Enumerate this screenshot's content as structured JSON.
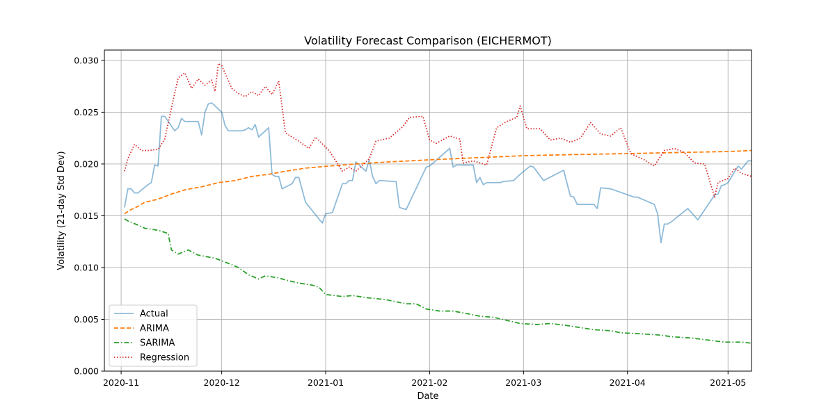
{
  "chart_data": {
    "type": "line",
    "title": "Volatility Forecast Comparison (EICHERMOT)",
    "xlabel": "Date",
    "ylabel": "Volatility (21-day Std Dev)",
    "xlim": [
      "2020-10-27",
      "2021-05-08"
    ],
    "ylim": [
      0,
      0.031
    ],
    "x_ticks": [
      {
        "date": "2020-11-01",
        "label": "2020-11"
      },
      {
        "date": "2020-12-01",
        "label": "2020-12"
      },
      {
        "date": "2021-01-01",
        "label": "2021-01"
      },
      {
        "date": "2021-02-01",
        "label": "2021-02"
      },
      {
        "date": "2021-03-01",
        "label": "2021-03"
      },
      {
        "date": "2021-04-01",
        "label": "2021-04"
      },
      {
        "date": "2021-05-01",
        "label": "2021-05"
      }
    ],
    "y_ticks": [
      {
        "value": 0,
        "label": "0.000"
      },
      {
        "value": 0.005,
        "label": "0.005"
      },
      {
        "value": 0.01,
        "label": "0.010"
      },
      {
        "value": 0.015,
        "label": "0.015"
      },
      {
        "value": 0.02,
        "label": "0.020"
      },
      {
        "value": 0.025,
        "label": "0.025"
      },
      {
        "value": 0.03,
        "label": "0.030"
      }
    ],
    "grid": true,
    "legend_position": "lower-left",
    "series": [
      {
        "name": "Actual",
        "color": "#1f77b4",
        "dash": "solid",
        "opacity": 0.5,
        "points": [
          [
            "2020-11-02",
            0.0158
          ],
          [
            "2020-11-03",
            0.0176
          ],
          [
            "2020-11-04",
            0.0176
          ],
          [
            "2020-11-05",
            0.0172
          ],
          [
            "2020-11-06",
            0.0172
          ],
          [
            "2020-11-09",
            0.018
          ],
          [
            "2020-11-10",
            0.0182
          ],
          [
            "2020-11-11",
            0.0199
          ],
          [
            "2020-11-12",
            0.0198
          ],
          [
            "2020-11-13",
            0.0246
          ],
          [
            "2020-11-14",
            0.0246
          ],
          [
            "2020-11-17",
            0.0232
          ],
          [
            "2020-11-18",
            0.0235
          ],
          [
            "2020-11-19",
            0.0244
          ],
          [
            "2020-11-20",
            0.0241
          ],
          [
            "2020-11-23",
            0.0241
          ],
          [
            "2020-11-24",
            0.0241
          ],
          [
            "2020-11-25",
            0.0228
          ],
          [
            "2020-11-26",
            0.025
          ],
          [
            "2020-11-27",
            0.0258
          ],
          [
            "2020-11-28",
            0.0259
          ],
          [
            "2020-12-01",
            0.025
          ],
          [
            "2020-12-02",
            0.0237
          ],
          [
            "2020-12-03",
            0.0232
          ],
          [
            "2020-12-07",
            0.0232
          ],
          [
            "2020-12-08",
            0.0233
          ],
          [
            "2020-12-09",
            0.0235
          ],
          [
            "2020-12-10",
            0.0233
          ],
          [
            "2020-12-11",
            0.0238
          ],
          [
            "2020-12-12",
            0.0226
          ],
          [
            "2020-12-15",
            0.0235
          ],
          [
            "2020-12-16",
            0.019
          ],
          [
            "2020-12-17",
            0.0188
          ],
          [
            "2020-12-18",
            0.0188
          ],
          [
            "2020-12-19",
            0.0176
          ],
          [
            "2020-12-22",
            0.0181
          ],
          [
            "2020-12-23",
            0.0187
          ],
          [
            "2020-12-24",
            0.0187
          ],
          [
            "2020-12-26",
            0.0163
          ],
          [
            "2020-12-31",
            0.0143
          ],
          [
            "2021-01-01",
            0.0152
          ],
          [
            "2021-01-03",
            0.0153
          ],
          [
            "2021-01-06",
            0.0181
          ],
          [
            "2021-01-07",
            0.0181
          ],
          [
            "2021-01-08",
            0.0184
          ],
          [
            "2021-01-09",
            0.0184
          ],
          [
            "2021-01-10",
            0.0202
          ],
          [
            "2021-01-13",
            0.0193
          ],
          [
            "2021-01-14",
            0.0204
          ],
          [
            "2021-01-15",
            0.0188
          ],
          [
            "2021-01-16",
            0.0181
          ],
          [
            "2021-01-17",
            0.0184
          ],
          [
            "2021-01-22",
            0.0183
          ],
          [
            "2021-01-23",
            0.0158
          ],
          [
            "2021-01-25",
            0.0156
          ],
          [
            "2021-01-31",
            0.0197
          ],
          [
            "2021-02-01",
            0.0198
          ],
          [
            "2021-02-07",
            0.0215
          ],
          [
            "2021-02-08",
            0.0197
          ],
          [
            "2021-02-09",
            0.0199
          ],
          [
            "2021-02-14",
            0.0199
          ],
          [
            "2021-02-15",
            0.0182
          ],
          [
            "2021-02-16",
            0.0187
          ],
          [
            "2021-02-17",
            0.018
          ],
          [
            "2021-02-18",
            0.0182
          ],
          [
            "2021-02-22",
            0.0182
          ],
          [
            "2021-02-23",
            0.0183
          ],
          [
            "2021-02-26",
            0.0184
          ],
          [
            "2021-02-28",
            0.019
          ],
          [
            "2021-03-03",
            0.0198
          ],
          [
            "2021-03-04",
            0.0197
          ],
          [
            "2021-03-07",
            0.0184
          ],
          [
            "2021-03-13",
            0.0194
          ],
          [
            "2021-03-14",
            0.0181
          ],
          [
            "2021-03-15",
            0.0169
          ],
          [
            "2021-03-16",
            0.0168
          ],
          [
            "2021-03-17",
            0.0161
          ],
          [
            "2021-03-22",
            0.0161
          ],
          [
            "2021-03-23",
            0.0157
          ],
          [
            "2021-03-24",
            0.0177
          ],
          [
            "2021-03-27",
            0.0176
          ],
          [
            "2021-04-03",
            0.0168
          ],
          [
            "2021-04-04",
            0.0168
          ],
          [
            "2021-04-09",
            0.0161
          ],
          [
            "2021-04-10",
            0.0152
          ],
          [
            "2021-04-11",
            0.0124
          ],
          [
            "2021-04-12",
            0.0142
          ],
          [
            "2021-04-13",
            0.0142
          ],
          [
            "2021-04-14",
            0.0144
          ],
          [
            "2021-04-19",
            0.0157
          ],
          [
            "2021-04-22",
            0.0146
          ],
          [
            "2021-04-27",
            0.017
          ],
          [
            "2021-04-28",
            0.0171
          ],
          [
            "2021-04-29",
            0.0179
          ],
          [
            "2021-04-30",
            0.018
          ],
          [
            "2021-05-01",
            0.0182
          ],
          [
            "2021-05-04",
            0.0198
          ],
          [
            "2021-05-05",
            0.0195
          ],
          [
            "2021-05-07",
            0.0203
          ],
          [
            "2021-05-08",
            0.0203
          ]
        ]
      },
      {
        "name": "ARIMA",
        "color": "#ff7f0e",
        "dash": "dashed",
        "opacity": 1,
        "points": [
          [
            "2020-11-02",
            0.0152
          ],
          [
            "2020-11-04",
            0.0156
          ],
          [
            "2020-11-06",
            0.0159
          ],
          [
            "2020-11-08",
            0.0163
          ],
          [
            "2020-11-12",
            0.0166
          ],
          [
            "2020-11-16",
            0.0171
          ],
          [
            "2020-11-20",
            0.0175
          ],
          [
            "2020-11-25",
            0.0178
          ],
          [
            "2020-11-30",
            0.0182
          ],
          [
            "2020-12-05",
            0.0184
          ],
          [
            "2020-12-10",
            0.0188
          ],
          [
            "2020-12-15",
            0.019
          ],
          [
            "2020-12-20",
            0.0193
          ],
          [
            "2020-12-26",
            0.0196
          ],
          [
            "2021-01-02",
            0.0198
          ],
          [
            "2021-01-10",
            0.02
          ],
          [
            "2021-01-20",
            0.0202
          ],
          [
            "2021-02-01",
            0.0204
          ],
          [
            "2021-02-15",
            0.0206
          ],
          [
            "2021-03-01",
            0.0208
          ],
          [
            "2021-03-15",
            0.0209
          ],
          [
            "2021-04-01",
            0.021
          ],
          [
            "2021-04-15",
            0.0211
          ],
          [
            "2021-05-01",
            0.0212
          ],
          [
            "2021-05-08",
            0.0213
          ]
        ]
      },
      {
        "name": "SARIMA",
        "color": "#2ca02c",
        "dash": "dashdot",
        "opacity": 1,
        "points": [
          [
            "2020-11-02",
            0.0147
          ],
          [
            "2020-11-03",
            0.0145
          ],
          [
            "2020-11-06",
            0.0141
          ],
          [
            "2020-11-08",
            0.0138
          ],
          [
            "2020-11-12",
            0.0136
          ],
          [
            "2020-11-15",
            0.0133
          ],
          [
            "2020-11-16",
            0.0117
          ],
          [
            "2020-11-18",
            0.0113
          ],
          [
            "2020-11-21",
            0.0117
          ],
          [
            "2020-11-24",
            0.0112
          ],
          [
            "2020-11-29",
            0.0109
          ],
          [
            "2020-12-03",
            0.0104
          ],
          [
            "2020-12-06",
            0.01
          ],
          [
            "2020-12-09",
            0.0093
          ],
          [
            "2020-12-12",
            0.0089
          ],
          [
            "2020-12-14",
            0.0092
          ],
          [
            "2020-12-18",
            0.009
          ],
          [
            "2020-12-20",
            0.0088
          ],
          [
            "2020-12-24",
            0.0085
          ],
          [
            "2020-12-28",
            0.0083
          ],
          [
            "2020-12-30",
            0.0081
          ],
          [
            "2021-01-01",
            0.0074
          ],
          [
            "2021-01-06",
            0.0072
          ],
          [
            "2021-01-09",
            0.0073
          ],
          [
            "2021-01-13",
            0.0071
          ],
          [
            "2021-01-19",
            0.0069
          ],
          [
            "2021-01-22",
            0.0067
          ],
          [
            "2021-01-25",
            0.0065
          ],
          [
            "2021-01-28",
            0.0065
          ],
          [
            "2021-01-31",
            0.006
          ],
          [
            "2021-02-04",
            0.0058
          ],
          [
            "2021-02-08",
            0.0058
          ],
          [
            "2021-02-13",
            0.0055
          ],
          [
            "2021-02-16",
            0.0053
          ],
          [
            "2021-02-20",
            0.0052
          ],
          [
            "2021-02-24",
            0.0049
          ],
          [
            "2021-02-28",
            0.0046
          ],
          [
            "2021-03-05",
            0.0045
          ],
          [
            "2021-03-09",
            0.0046
          ],
          [
            "2021-03-14",
            0.0044
          ],
          [
            "2021-03-18",
            0.0042
          ],
          [
            "2021-03-22",
            0.004
          ],
          [
            "2021-03-27",
            0.0039
          ],
          [
            "2021-03-30",
            0.0037
          ],
          [
            "2021-04-05",
            0.0036
          ],
          [
            "2021-04-10",
            0.0035
          ],
          [
            "2021-04-15",
            0.0033
          ],
          [
            "2021-04-20",
            0.0032
          ],
          [
            "2021-04-25",
            0.003
          ],
          [
            "2021-04-30",
            0.0028
          ],
          [
            "2021-05-05",
            0.0028
          ],
          [
            "2021-05-08",
            0.0027
          ]
        ]
      },
      {
        "name": "Regression",
        "color": "#d62728",
        "dash": "dotted",
        "opacity": 1,
        "points": [
          [
            "2020-11-02",
            0.0193
          ],
          [
            "2020-11-03",
            0.0205
          ],
          [
            "2020-11-05",
            0.0219
          ],
          [
            "2020-11-07",
            0.0213
          ],
          [
            "2020-11-09",
            0.0213
          ],
          [
            "2020-11-12",
            0.0214
          ],
          [
            "2020-11-14",
            0.0224
          ],
          [
            "2020-11-16",
            0.0254
          ],
          [
            "2020-11-18",
            0.0283
          ],
          [
            "2020-11-20",
            0.0288
          ],
          [
            "2020-11-22",
            0.0273
          ],
          [
            "2020-11-24",
            0.0282
          ],
          [
            "2020-11-26",
            0.0276
          ],
          [
            "2020-11-28",
            0.0281
          ],
          [
            "2020-11-29",
            0.027
          ],
          [
            "2020-11-30",
            0.0297
          ],
          [
            "2020-12-01",
            0.0295
          ],
          [
            "2020-12-04",
            0.0273
          ],
          [
            "2020-12-06",
            0.0268
          ],
          [
            "2020-12-08",
            0.0265
          ],
          [
            "2020-12-10",
            0.027
          ],
          [
            "2020-12-12",
            0.0266
          ],
          [
            "2020-12-14",
            0.0275
          ],
          [
            "2020-12-16",
            0.0267
          ],
          [
            "2020-12-18",
            0.028
          ],
          [
            "2020-12-20",
            0.023
          ],
          [
            "2020-12-24",
            0.0222
          ],
          [
            "2020-12-27",
            0.0215
          ],
          [
            "2020-12-29",
            0.0226
          ],
          [
            "2021-01-02",
            0.0213
          ],
          [
            "2021-01-06",
            0.0193
          ],
          [
            "2021-01-08",
            0.0197
          ],
          [
            "2021-01-10",
            0.0193
          ],
          [
            "2021-01-14",
            0.0205
          ],
          [
            "2021-01-16",
            0.0222
          ],
          [
            "2021-01-20",
            0.0225
          ],
          [
            "2021-01-24",
            0.0236
          ],
          [
            "2021-01-26",
            0.0245
          ],
          [
            "2021-01-30",
            0.0246
          ],
          [
            "2021-02-01",
            0.0223
          ],
          [
            "2021-02-03",
            0.022
          ],
          [
            "2021-02-07",
            0.0227
          ],
          [
            "2021-02-10",
            0.0224
          ],
          [
            "2021-02-11",
            0.0201
          ],
          [
            "2021-02-14",
            0.0203
          ],
          [
            "2021-02-18",
            0.0199
          ],
          [
            "2021-02-21",
            0.0235
          ],
          [
            "2021-02-24",
            0.0241
          ],
          [
            "2021-02-27",
            0.0245
          ],
          [
            "2021-02-28",
            0.0256
          ],
          [
            "2021-03-02",
            0.0234
          ],
          [
            "2021-03-06",
            0.0234
          ],
          [
            "2021-03-09",
            0.0223
          ],
          [
            "2021-03-12",
            0.0225
          ],
          [
            "2021-03-15",
            0.0221
          ],
          [
            "2021-03-18",
            0.0225
          ],
          [
            "2021-03-21",
            0.024
          ],
          [
            "2021-03-24",
            0.0229
          ],
          [
            "2021-03-27",
            0.0227
          ],
          [
            "2021-03-30",
            0.0235
          ],
          [
            "2021-04-02",
            0.021
          ],
          [
            "2021-04-06",
            0.0204
          ],
          [
            "2021-04-09",
            0.0198
          ],
          [
            "2021-04-12",
            0.0213
          ],
          [
            "2021-04-15",
            0.0215
          ],
          [
            "2021-04-18",
            0.0211
          ],
          [
            "2021-04-21",
            0.0201
          ],
          [
            "2021-04-24",
            0.02
          ],
          [
            "2021-04-27",
            0.0168
          ],
          [
            "2021-04-28",
            0.0182
          ],
          [
            "2021-05-01",
            0.0186
          ],
          [
            "2021-05-03",
            0.0196
          ],
          [
            "2021-05-05",
            0.0191
          ],
          [
            "2021-05-07",
            0.0189
          ],
          [
            "2021-05-08",
            0.0188
          ]
        ]
      }
    ]
  }
}
